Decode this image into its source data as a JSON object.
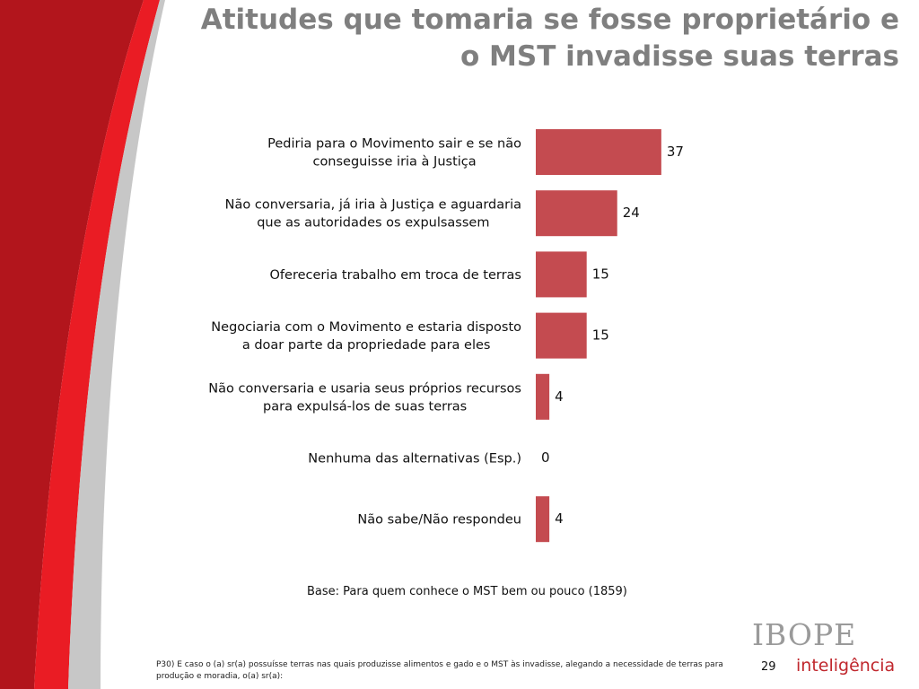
{
  "title": {
    "line1": "Atitudes que tomaria se fosse proprietário e",
    "line2": "o MST invadisse suas terras"
  },
  "colors": {
    "bar": "#c44b50",
    "title": "#7f7f7f",
    "accent_red": "#b2151c",
    "logo_red": "#c0272d"
  },
  "chart_data": {
    "type": "bar",
    "orientation": "horizontal",
    "categories": [
      [
        "Pediria para o Movimento sair e se não",
        "conseguisse iria à Justiça"
      ],
      [
        "Não conversaria, já iria à Justiça e aguardaria",
        "que as autoridades os expulsassem"
      ],
      [
        "Ofereceria trabalho em troca de terras"
      ],
      [
        "Negociaria com o Movimento e estaria disposto",
        "a doar parte da propriedade para eles"
      ],
      [
        "Não conversaria e usaria seus próprios recursos",
        "para expulsá-los de suas terras"
      ],
      [
        "Nenhuma das alternativas (Esp.)"
      ],
      [
        "Não sabe/Não respondeu"
      ]
    ],
    "values": [
      37,
      24,
      15,
      15,
      4,
      0,
      4
    ],
    "xlim": [
      0,
      40
    ],
    "grid": false,
    "legend": "none"
  },
  "base_note": "Base: Para quem conhece o MST bem ou pouco (1859)",
  "footnote": "P30) E caso o (a) sr(a) possuísse terras nas quais produzisse alimentos e gado e o MST às invadisse, alegando a necessidade de terras para produção e moradia, o(a) sr(a):",
  "page_number": "29",
  "logo": {
    "brand": "IBOPE",
    "sub": "inteligência"
  }
}
